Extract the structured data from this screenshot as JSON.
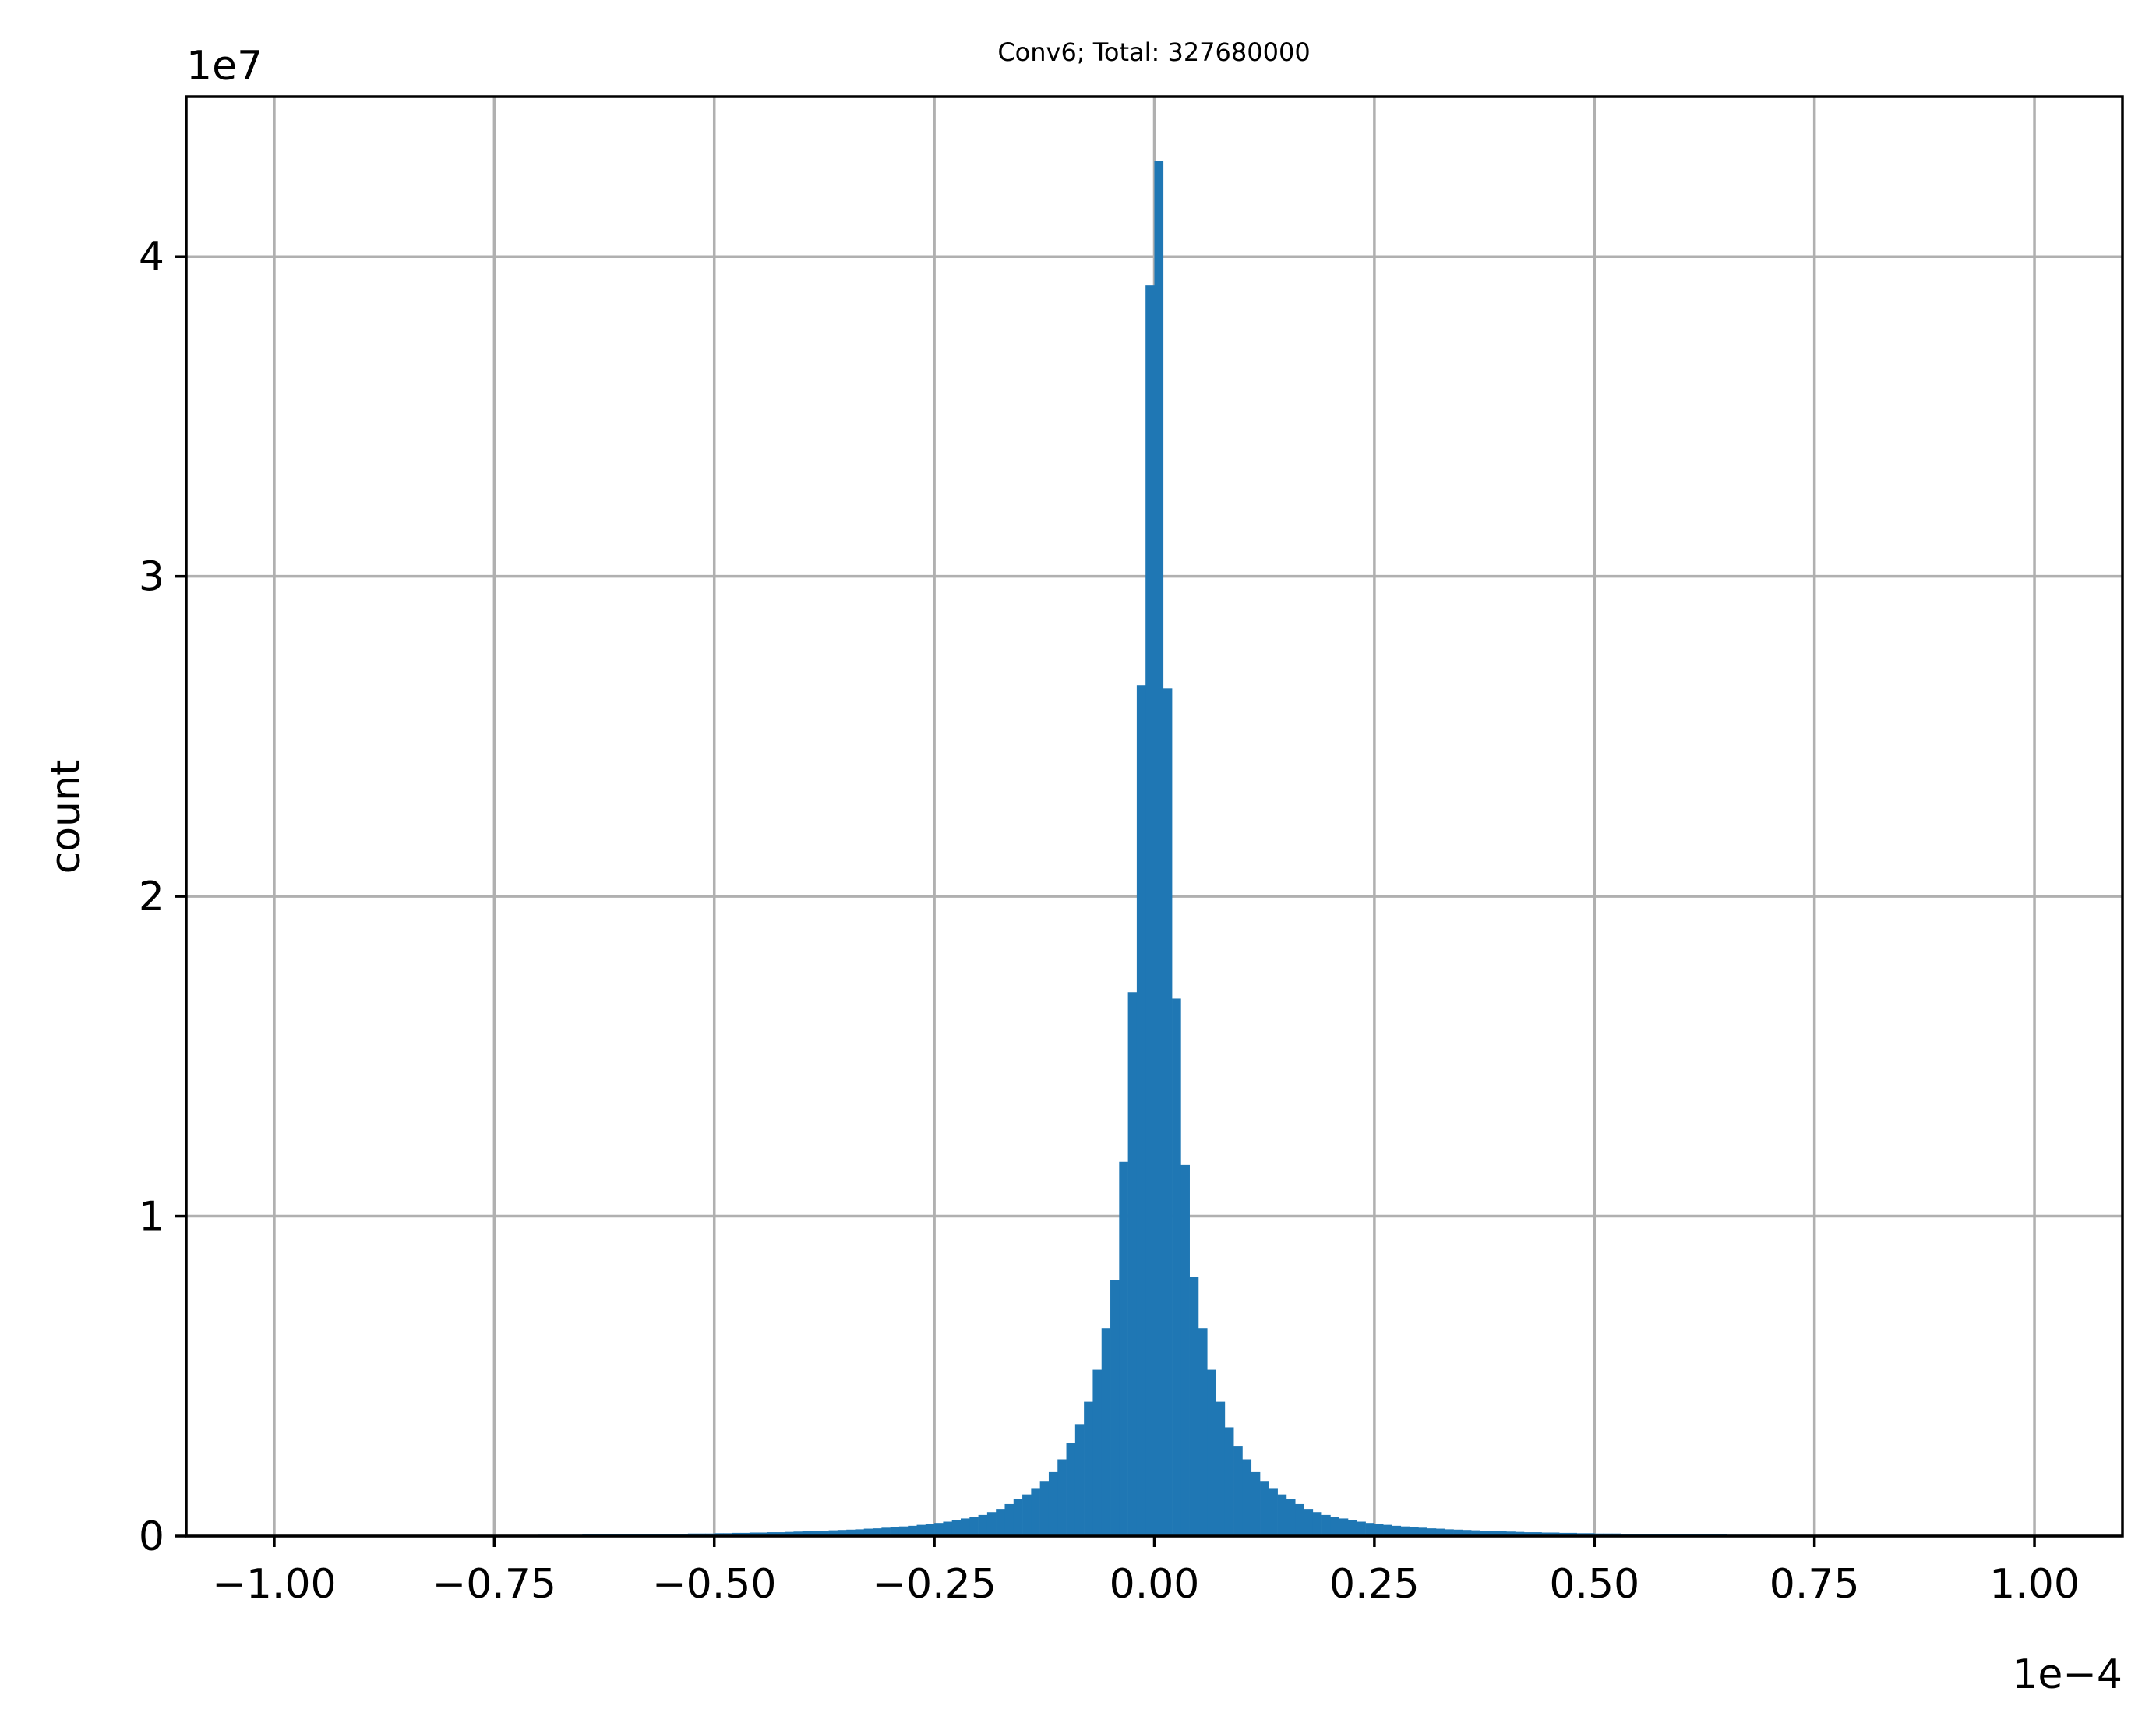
{
  "chart_data": {
    "type": "bar",
    "title": "Conv6; Total: 327680000",
    "xlabel": "",
    "ylabel": "count",
    "x_offset_label": "1e−4",
    "y_offset_label": "1e7",
    "xlim": [
      -1.1,
      1.1
    ],
    "ylim": [
      0,
      4.5
    ],
    "grid": true,
    "bar_color": "#1f77b4",
    "xticks": [
      -1.0,
      -0.75,
      -0.5,
      -0.25,
      0.0,
      0.25,
      0.5,
      0.75,
      1.0
    ],
    "xtick_labels": [
      "−1.00",
      "−0.75",
      "−0.50",
      "−0.25",
      "0.00",
      "0.25",
      "0.50",
      "0.75",
      "1.00"
    ],
    "yticks": [
      0,
      1,
      2,
      3,
      4
    ],
    "ytick_labels": [
      "0",
      "1",
      "2",
      "3",
      "4"
    ],
    "bin_start": -1.0,
    "bin_width": 0.01,
    "values": [
      0.001,
      0.001,
      0.001,
      0.001,
      0.001,
      0.001,
      0.001,
      0.001,
      0.001,
      0.001,
      0.002,
      0.002,
      0.002,
      0.002,
      0.002,
      0.002,
      0.002,
      0.002,
      0.002,
      0.002,
      0.003,
      0.003,
      0.003,
      0.003,
      0.003,
      0.003,
      0.003,
      0.003,
      0.003,
      0.003,
      0.004,
      0.004,
      0.004,
      0.004,
      0.004,
      0.005,
      0.005,
      0.005,
      0.005,
      0.005,
      0.006,
      0.006,
      0.006,
      0.006,
      0.007,
      0.007,
      0.007,
      0.008,
      0.008,
      0.008,
      0.009,
      0.009,
      0.01,
      0.01,
      0.011,
      0.011,
      0.012,
      0.012,
      0.013,
      0.014,
      0.015,
      0.016,
      0.017,
      0.018,
      0.019,
      0.02,
      0.021,
      0.023,
      0.024,
      0.026,
      0.028,
      0.03,
      0.032,
      0.035,
      0.038,
      0.041,
      0.045,
      0.05,
      0.055,
      0.06,
      0.066,
      0.075,
      0.085,
      0.1,
      0.115,
      0.13,
      0.15,
      0.17,
      0.2,
      0.24,
      0.29,
      0.35,
      0.42,
      0.52,
      0.65,
      0.8,
      1.17,
      1.7,
      2.66,
      3.91,
      4.3,
      2.65,
      1.68,
      1.16,
      0.81,
      0.65,
      0.52,
      0.42,
      0.34,
      0.28,
      0.24,
      0.2,
      0.17,
      0.15,
      0.13,
      0.115,
      0.1,
      0.085,
      0.075,
      0.066,
      0.06,
      0.055,
      0.05,
      0.045,
      0.041,
      0.038,
      0.035,
      0.032,
      0.03,
      0.028,
      0.026,
      0.024,
      0.023,
      0.021,
      0.02,
      0.019,
      0.018,
      0.017,
      0.016,
      0.015,
      0.014,
      0.013,
      0.012,
      0.012,
      0.011,
      0.011,
      0.01,
      0.01,
      0.009,
      0.009,
      0.008,
      0.008,
      0.008,
      0.007,
      0.007,
      0.007,
      0.006,
      0.006,
      0.006,
      0.006,
      0.005,
      0.005,
      0.005,
      0.005,
      0.005,
      0.004,
      0.004,
      0.004,
      0.004,
      0.004,
      0.003,
      0.003,
      0.003,
      0.003,
      0.003,
      0.003,
      0.003,
      0.003,
      0.003,
      0.003,
      0.002,
      0.002,
      0.002,
      0.002,
      0.002,
      0.002,
      0.002,
      0.002,
      0.002,
      0.002,
      0.001,
      0.001,
      0.001,
      0.001,
      0.001,
      0.001,
      0.001,
      0.001,
      0.001,
      0.001
    ]
  }
}
